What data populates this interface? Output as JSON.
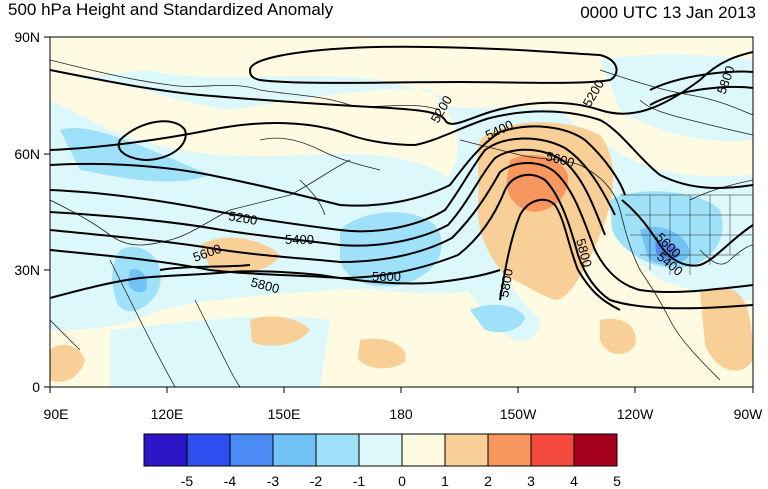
{
  "header": {
    "title": "500 hPa Height and Standardized Anomaly",
    "datetime": "0000 UTC 13 Jan 2013"
  },
  "axes": {
    "latitude_labels": [
      "90N",
      "60N",
      "30N",
      "0"
    ],
    "longitude_labels": [
      "90E",
      "120E",
      "150E",
      "180",
      "150W",
      "120W",
      "90W"
    ]
  },
  "contour_labels": [
    "5200",
    "5200",
    "5200",
    "5400",
    "5400",
    "5400",
    "5600",
    "5600",
    "5600",
    "5600",
    "5800",
    "5800",
    "5800",
    "5800"
  ],
  "colorbar": {
    "labels": [
      "-5",
      "-4",
      "-3",
      "-2",
      "-1",
      "0",
      "1",
      "2",
      "3",
      "4",
      "5"
    ],
    "colors": [
      "#2d16c8",
      "#2f4ef0",
      "#4a8cf4",
      "#73c2f5",
      "#9fe1f9",
      "#dcf8fb",
      "#fffbe2",
      "#f9cf98",
      "#f7965e",
      "#f54a3e",
      "#a4001e"
    ]
  }
}
